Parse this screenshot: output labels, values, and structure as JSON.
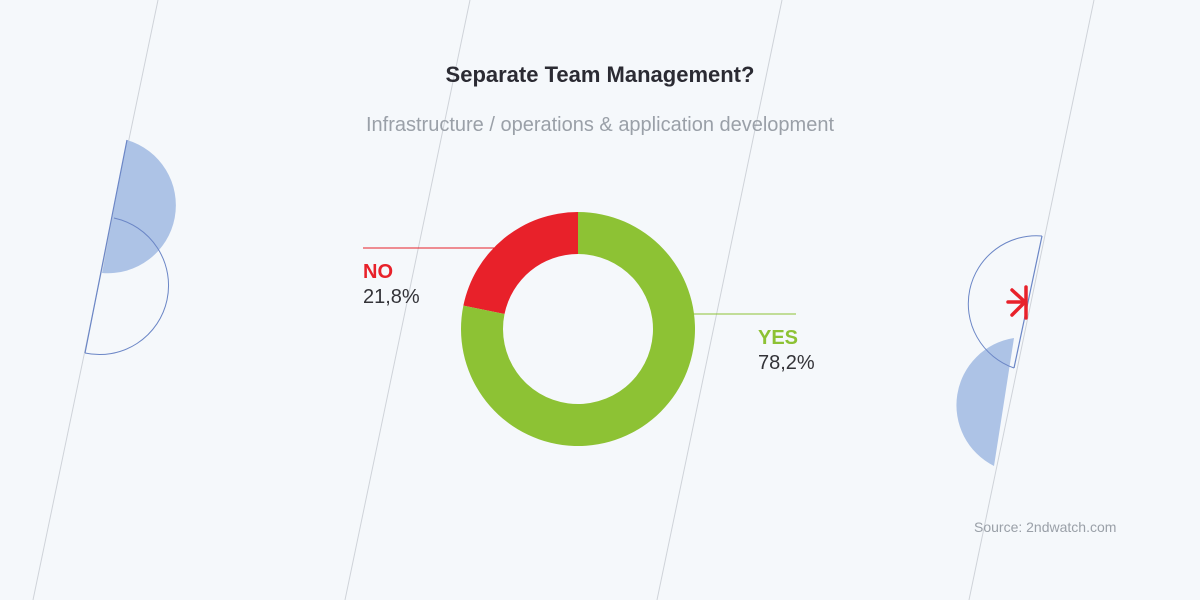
{
  "title": "Separate Team Management?",
  "subtitle": "Infrastructure / operations & application development",
  "source": "Source: 2ndwatch.com",
  "colors": {
    "no": "#e8212a",
    "yes": "#8dc234",
    "deco_fill": "#adc3e6",
    "deco_line": "#6b86c6",
    "diag_line": "#cfd3d9"
  },
  "chart_data": {
    "type": "pie",
    "title": "Separate Team Management?",
    "subtitle": "Infrastructure / operations & application development",
    "donut": true,
    "slices": [
      {
        "label": "NO",
        "value": 21.8,
        "display": "21,8%",
        "color": "#e8212a"
      },
      {
        "label": "YES",
        "value": 78.2,
        "display": "78,2%",
        "color": "#8dc234"
      }
    ]
  }
}
